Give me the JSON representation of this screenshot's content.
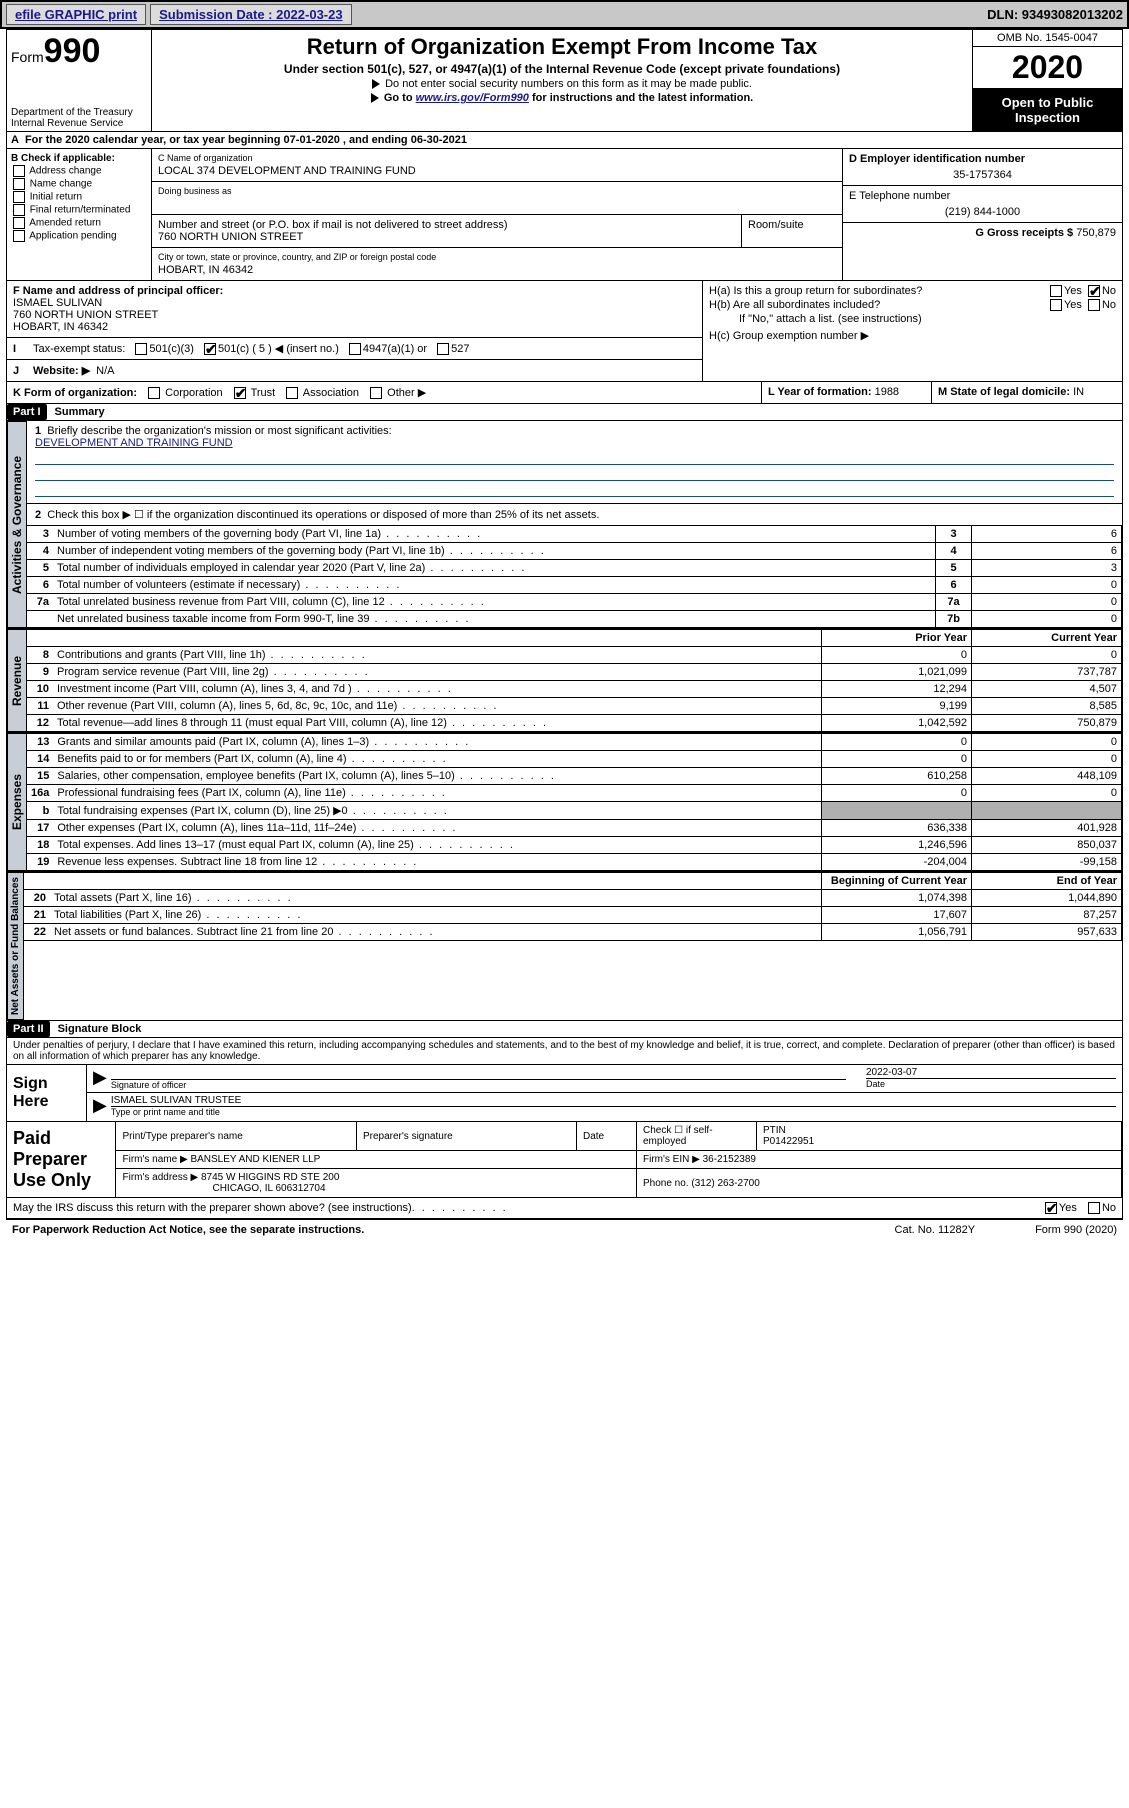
{
  "topbar": {
    "efile": "efile GRAPHIC print",
    "sub_label": "Submission Date : 2022-03-23",
    "dln": "DLN: 93493082013202"
  },
  "header": {
    "form_prefix": "Form",
    "form_no": "990",
    "dept": "Department of the Treasury\nInternal Revenue Service",
    "title": "Return of Organization Exempt From Income Tax",
    "sub": "Under section 501(c), 527, or 4947(a)(1) of the Internal Revenue Code (except private foundations)",
    "line1": "Do not enter social security numbers on this form as it may be made public.",
    "line2_pre": "Go to ",
    "line2_link": "www.irs.gov/Form990",
    "line2_post": " for instructions and the latest information.",
    "omb": "OMB No. 1545-0047",
    "year": "2020",
    "open": "Open to Public Inspection"
  },
  "line_a": "For the 2020 calendar year, or tax year beginning 07-01-2020    , and ending 06-30-2021",
  "section_b": {
    "heading": "B Check if applicable:",
    "items": [
      "Address change",
      "Name change",
      "Initial return",
      "Final return/terminated",
      "Amended return",
      "Application pending"
    ]
  },
  "section_c": {
    "name_lbl": "C Name of organization",
    "name": "LOCAL 374 DEVELOPMENT AND TRAINING FUND",
    "dba_lbl": "Doing business as",
    "street_lbl": "Number and street (or P.O. box if mail is not delivered to street address)",
    "room_lbl": "Room/suite",
    "street": "760 NORTH UNION STREET",
    "city_lbl": "City or town, state or province, country, and ZIP or foreign postal code",
    "city": "HOBART, IN  46342"
  },
  "section_d": {
    "lbl": "D Employer identification number",
    "val": "35-1757364"
  },
  "section_e": {
    "lbl": "E Telephone number",
    "val": "(219) 844-1000"
  },
  "section_g": {
    "lbl": "G Gross receipts $",
    "val": "750,879"
  },
  "section_f": {
    "lbl": "F Name and address of principal officer:",
    "name": "ISMAEL SULIVAN",
    "street": "760 NORTH UNION STREET",
    "city": "HOBART, IN  46342"
  },
  "section_h": {
    "ha": "H(a)  Is this a group return for subordinates?",
    "hb": "H(b)  Are all subordinates included?",
    "hb_note": "If \"No,\" attach a list. (see instructions)",
    "hc": "H(c)  Group exemption number ▶"
  },
  "line_i": {
    "lbl": "Tax-exempt status:",
    "opts": [
      "501(c)(3)",
      "501(c) ( 5 ) ◀ (insert no.)",
      "4947(a)(1) or",
      "527"
    ]
  },
  "line_j": {
    "lbl": "Website: ▶",
    "val": "N/A"
  },
  "line_k": {
    "k_lbl": "K Form of organization:",
    "k_opts": [
      "Corporation",
      "Trust",
      "Association",
      "Other ▶"
    ],
    "l_lbl": "L Year of formation:",
    "l_val": "1988",
    "m_lbl": "M State of legal domicile:",
    "m_val": "IN"
  },
  "part1": {
    "tag": "Part I",
    "title": "Summary"
  },
  "gov": {
    "tab": "Activities & Governance",
    "q1": "Briefly describe the organization's mission or most significant activities:",
    "q1_val": "DEVELOPMENT AND TRAINING FUND",
    "q2": "Check this box ▶ ☐  if the organization discontinued its operations or disposed of more than 25% of its net assets.",
    "rows": [
      {
        "n": "3",
        "d": "Number of voting members of the governing body (Part VI, line 1a)",
        "b": "3",
        "v": "6"
      },
      {
        "n": "4",
        "d": "Number of independent voting members of the governing body (Part VI, line 1b)",
        "b": "4",
        "v": "6"
      },
      {
        "n": "5",
        "d": "Total number of individuals employed in calendar year 2020 (Part V, line 2a)",
        "b": "5",
        "v": "3"
      },
      {
        "n": "6",
        "d": "Total number of volunteers (estimate if necessary)",
        "b": "6",
        "v": "0"
      },
      {
        "n": "7a",
        "d": "Total unrelated business revenue from Part VIII, column (C), line 12",
        "b": "7a",
        "v": "0"
      },
      {
        "n": "",
        "d": "Net unrelated business taxable income from Form 990-T, line 39",
        "b": "7b",
        "v": "0"
      }
    ]
  },
  "rev": {
    "tab": "Revenue",
    "hdr_prior": "Prior Year",
    "hdr_curr": "Current Year",
    "rows": [
      {
        "n": "8",
        "d": "Contributions and grants (Part VIII, line 1h)",
        "p": "0",
        "c": "0"
      },
      {
        "n": "9",
        "d": "Program service revenue (Part VIII, line 2g)",
        "p": "1,021,099",
        "c": "737,787"
      },
      {
        "n": "10",
        "d": "Investment income (Part VIII, column (A), lines 3, 4, and 7d )",
        "p": "12,294",
        "c": "4,507"
      },
      {
        "n": "11",
        "d": "Other revenue (Part VIII, column (A), lines 5, 6d, 8c, 9c, 10c, and 11e)",
        "p": "9,199",
        "c": "8,585"
      },
      {
        "n": "12",
        "d": "Total revenue—add lines 8 through 11 (must equal Part VIII, column (A), line 12)",
        "p": "1,042,592",
        "c": "750,879"
      }
    ]
  },
  "exp": {
    "tab": "Expenses",
    "rows": [
      {
        "n": "13",
        "d": "Grants and similar amounts paid (Part IX, column (A), lines 1–3)",
        "p": "0",
        "c": "0"
      },
      {
        "n": "14",
        "d": "Benefits paid to or for members (Part IX, column (A), line 4)",
        "p": "0",
        "c": "0"
      },
      {
        "n": "15",
        "d": "Salaries, other compensation, employee benefits (Part IX, column (A), lines 5–10)",
        "p": "610,258",
        "c": "448,109"
      },
      {
        "n": "16a",
        "d": "Professional fundraising fees (Part IX, column (A), line 11e)",
        "p": "0",
        "c": "0"
      },
      {
        "n": "b",
        "d": "Total fundraising expenses (Part IX, column (D), line 25) ▶0",
        "p": "",
        "c": "",
        "shade": true
      },
      {
        "n": "17",
        "d": "Other expenses (Part IX, column (A), lines 11a–11d, 11f–24e)",
        "p": "636,338",
        "c": "401,928"
      },
      {
        "n": "18",
        "d": "Total expenses. Add lines 13–17 (must equal Part IX, column (A), line 25)",
        "p": "1,246,596",
        "c": "850,037"
      },
      {
        "n": "19",
        "d": "Revenue less expenses. Subtract line 18 from line 12",
        "p": "-204,004",
        "c": "-99,158"
      }
    ]
  },
  "net": {
    "tab": "Net Assets or Fund Balances",
    "hdr_beg": "Beginning of Current Year",
    "hdr_end": "End of Year",
    "rows": [
      {
        "n": "20",
        "d": "Total assets (Part X, line 16)",
        "p": "1,074,398",
        "c": "1,044,890"
      },
      {
        "n": "21",
        "d": "Total liabilities (Part X, line 26)",
        "p": "17,607",
        "c": "87,257"
      },
      {
        "n": "22",
        "d": "Net assets or fund balances. Subtract line 21 from line 20",
        "p": "1,056,791",
        "c": "957,633"
      }
    ]
  },
  "part2": {
    "tag": "Part II",
    "title": "Signature Block"
  },
  "jurat": "Under penalties of perjury, I declare that I have examined this return, including accompanying schedules and statements, and to the best of my knowledge and belief, it is true, correct, and complete. Declaration of preparer (other than officer) is based on all information of which preparer has any knowledge.",
  "sign": {
    "left": "Sign Here",
    "sig_lbl": "Signature of officer",
    "date_lbl": "Date",
    "date_val": "2022-03-07",
    "name": "ISMAEL SULIVAN  TRUSTEE",
    "name_lbl": "Type or print name and title"
  },
  "prep": {
    "left": "Paid Preparer Use Only",
    "r1_lbl1": "Print/Type preparer's name",
    "r1_lbl2": "Preparer's signature",
    "r1_lbl3": "Date",
    "r1_chk": "Check ☐ if self-employed",
    "r1_ptin_lbl": "PTIN",
    "r1_ptin": "P01422951",
    "r2_lbl": "Firm's name    ▶",
    "r2_val": "BANSLEY AND KIENER LLP",
    "r2_ein_lbl": "Firm's EIN ▶",
    "r2_ein": "36-2152389",
    "r3_lbl": "Firm's address ▶",
    "r3_val": "8745 W HIGGINS RD STE 200",
    "r3_city": "CHICAGO, IL  606312704",
    "r3_ph_lbl": "Phone no.",
    "r3_ph": "(312) 263-2700"
  },
  "discuss": "May the IRS discuss this return with the preparer shown above? (see instructions)",
  "footer": {
    "left": "For Paperwork Reduction Act Notice, see the separate instructions.",
    "mid": "Cat. No. 11282Y",
    "right": "Form 990 (2020)"
  },
  "yesno": {
    "yes": "Yes",
    "no": "No"
  }
}
